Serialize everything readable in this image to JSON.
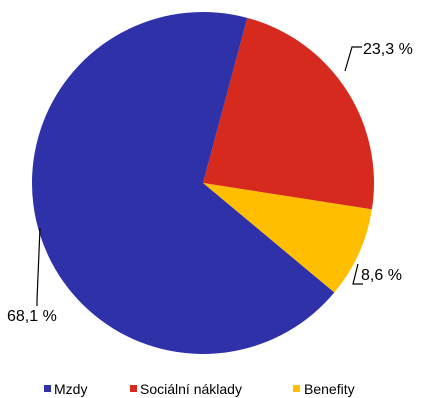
{
  "chart_data": {
    "type": "pie",
    "slices": [
      {
        "name": "Mzdy",
        "value": 68.1,
        "label": "68,1 %",
        "color": "#2E31A8"
      },
      {
        "name": "Sociální náklady",
        "value": 23.3,
        "label": "23,3 %",
        "color": "#D62A1F"
      },
      {
        "name": "Benefity",
        "value": 8.6,
        "label": "8,6 %",
        "color": "#FFBF00"
      }
    ],
    "legend": {
      "placement": "bottom",
      "items": [
        {
          "label": "Mzdy",
          "color": "#2E31A8"
        },
        {
          "label": "Sociální náklady",
          "color": "#D62A1F"
        },
        {
          "label": "Benefity",
          "color": "#FFBF00"
        }
      ]
    }
  }
}
